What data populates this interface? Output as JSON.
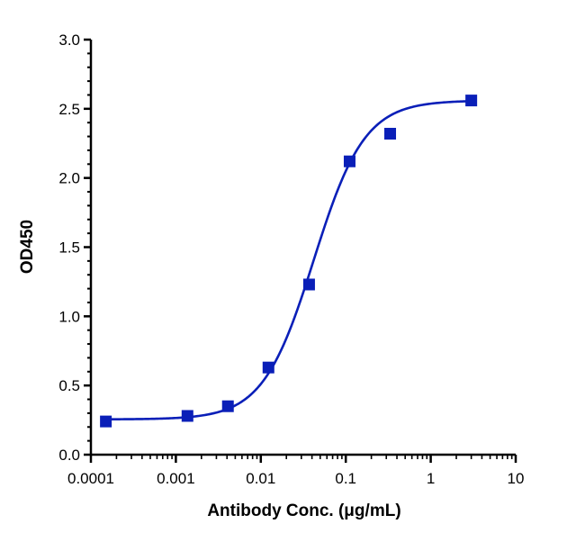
{
  "chart_data": {
    "type": "scatter",
    "xlabel": "Antibody Conc. (μg/mL)",
    "ylabel": "OD450",
    "x_scale": "log",
    "xlim": [
      0.0001,
      10
    ],
    "ylim": [
      0.0,
      3.0
    ],
    "x_ticks": [
      {
        "value": 0.0001,
        "label": "0.0001"
      },
      {
        "value": 0.001,
        "label": "0.001"
      },
      {
        "value": 0.01,
        "label": "0.01"
      },
      {
        "value": 0.1,
        "label": "0.1"
      },
      {
        "value": 1,
        "label": "1"
      },
      {
        "value": 10,
        "label": "10"
      }
    ],
    "y_ticks": [
      {
        "value": 0.0,
        "label": "0.0"
      },
      {
        "value": 0.5,
        "label": "0.5"
      },
      {
        "value": 1.0,
        "label": "1.0"
      },
      {
        "value": 1.5,
        "label": "1.5"
      },
      {
        "value": 2.0,
        "label": "2.0"
      },
      {
        "value": 2.5,
        "label": "2.5"
      },
      {
        "value": 3.0,
        "label": "3.0"
      }
    ],
    "grid": false,
    "legend": "none",
    "series": [
      {
        "points": [
          {
            "x": 0.00015,
            "y": 0.24
          },
          {
            "x": 0.00137,
            "y": 0.28
          },
          {
            "x": 0.0041,
            "y": 0.35
          },
          {
            "x": 0.0123,
            "y": 0.63
          },
          {
            "x": 0.037,
            "y": 1.23
          },
          {
            "x": 0.111,
            "y": 2.12
          },
          {
            "x": 0.333,
            "y": 2.32
          },
          {
            "x": 3.0,
            "y": 2.56
          }
        ],
        "fit": {
          "model": "4PL",
          "bottom": 0.255,
          "top": 2.56,
          "ec50": 0.042,
          "hill": 1.45
        }
      }
    ],
    "colors": {
      "series": "#0a1fb8",
      "axis": "#000000"
    }
  }
}
